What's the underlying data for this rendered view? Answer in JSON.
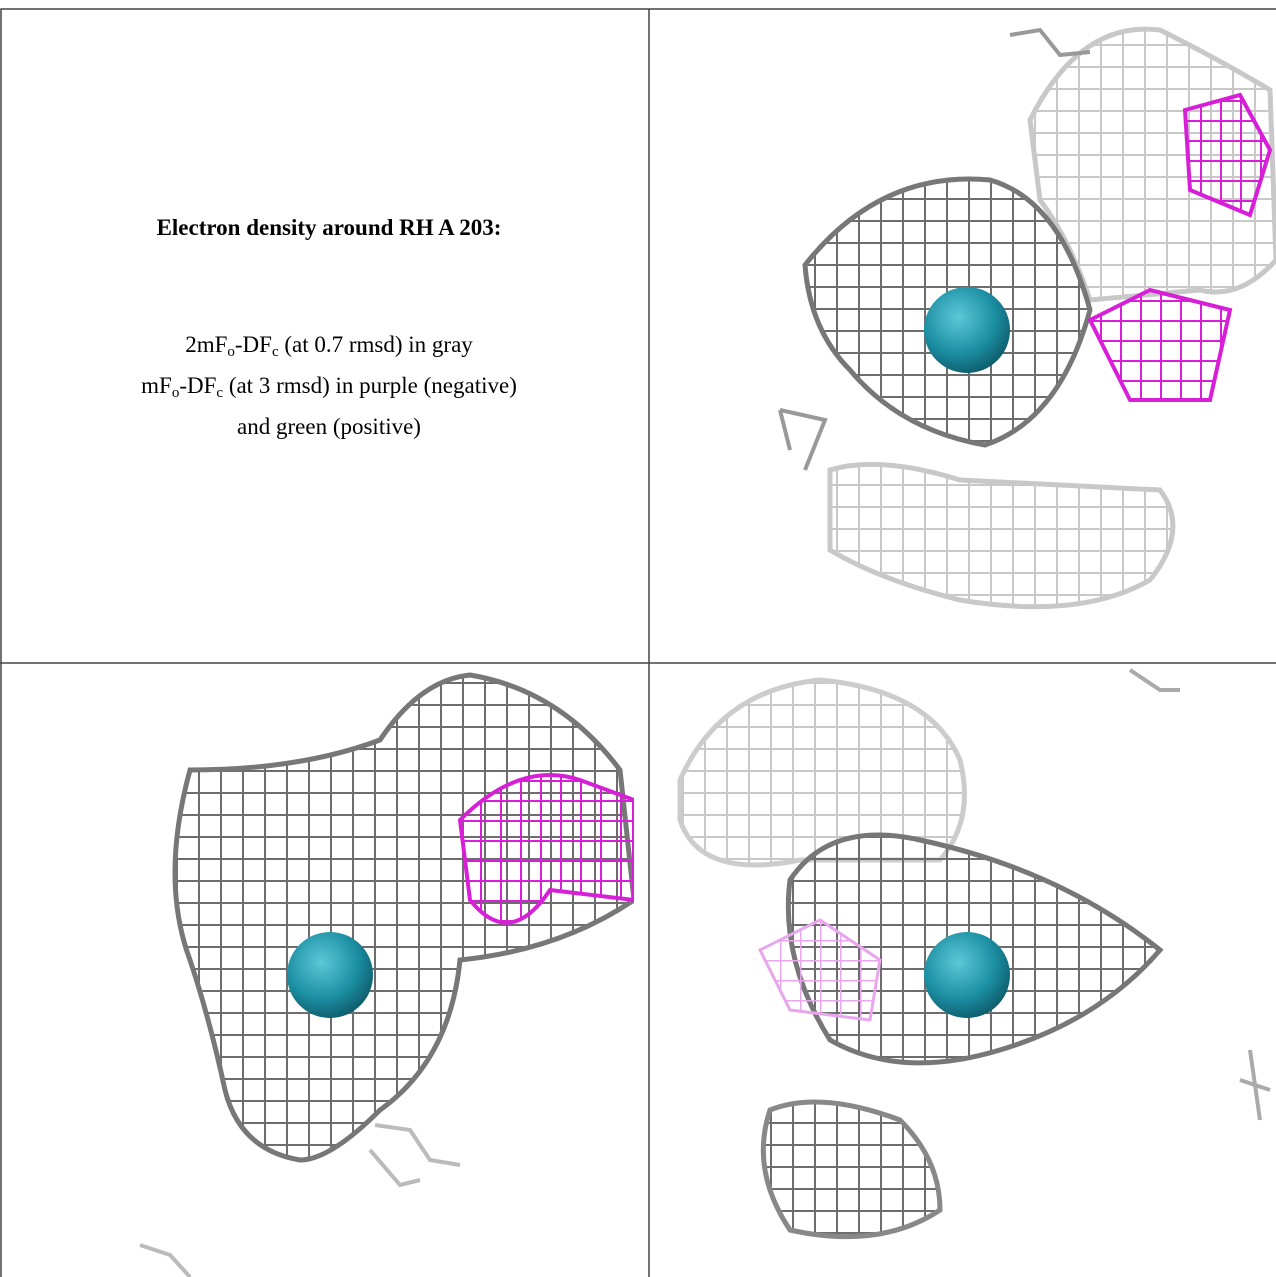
{
  "panel_text": {
    "title": "Electron density around RH A 203:",
    "legend": [
      [
        "2mF",
        "o",
        "-DF",
        "c",
        " (at 0.7 rmsd) in gray"
      ],
      [
        "mF",
        "o",
        "-DF",
        "c",
        " (at 3 rmsd) in purple (negative)"
      ],
      [
        "and green (positive)"
      ]
    ]
  }
}
